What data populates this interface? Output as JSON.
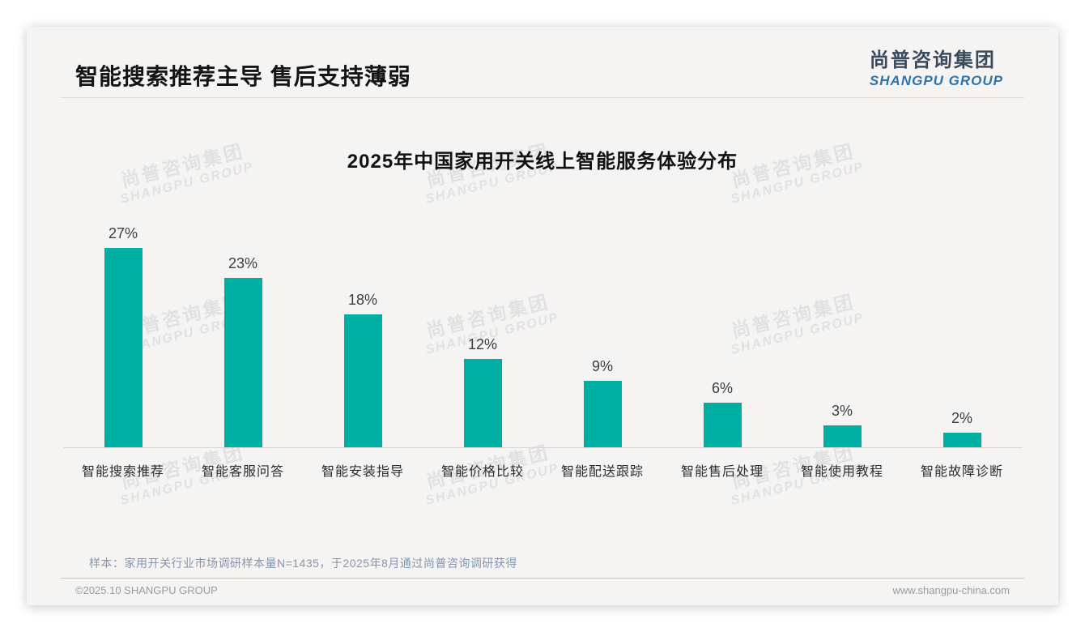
{
  "page": {
    "title": "智能搜索推荐主导 售后支持薄弱",
    "logo": {
      "cn": "尚普咨询集团",
      "en": "SHANGPU GROUP"
    },
    "watermark": {
      "cn": "尚普咨询集团",
      "en": "SHANGPU GROUP"
    },
    "sample_note": "样本：家用开关行业市场调研样本量N=1435，于2025年8月通过尚普咨询调研获得",
    "footer_left": "©2025.10 SHANGPU GROUP",
    "footer_right": "www.shangpu-china.com"
  },
  "chart_data": {
    "type": "bar",
    "title": "2025年中国家用开关线上智能服务体验分布",
    "categories": [
      "智能搜索推荐",
      "智能客服问答",
      "智能安装指导",
      "智能价格比较",
      "智能配送跟踪",
      "智能售后处理",
      "智能使用教程",
      "智能故障诊断"
    ],
    "values": [
      27,
      23,
      18,
      12,
      9,
      6,
      3,
      2
    ],
    "unit": "%",
    "bar_color": "#00AFA4",
    "xlabel": "",
    "ylabel": "",
    "ylim": [
      0,
      30
    ],
    "grid": false,
    "legend": false,
    "data_labels": true
  }
}
